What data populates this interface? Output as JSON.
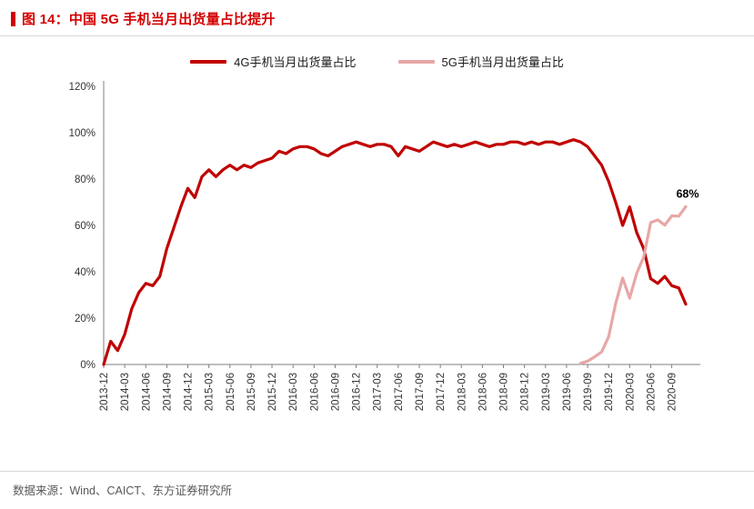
{
  "header": {
    "title": "图 14：中国 5G 手机当月出货量占比提升"
  },
  "footer": {
    "source": "数据来源：Wind、CAICT、东方证券研究所"
  },
  "colors": {
    "accent_red": "#d40000",
    "line_4g": "#c00000",
    "line_5g": "#e8a7a7",
    "axis": "#7f7f7f",
    "text": "#333333"
  },
  "chart_data": {
    "type": "line",
    "title": "中国 5G 手机当月出货量占比提升",
    "legend_position": "top",
    "grid": false,
    "ylim": [
      0,
      120
    ],
    "y_ticks": [
      0,
      20,
      40,
      60,
      80,
      100,
      120
    ],
    "y_tick_format": "percent",
    "x_tick_every": 3,
    "x": [
      "2013-12",
      "2014-01",
      "2014-02",
      "2014-03",
      "2014-04",
      "2014-05",
      "2014-06",
      "2014-07",
      "2014-08",
      "2014-09",
      "2014-10",
      "2014-11",
      "2014-12",
      "2015-01",
      "2015-02",
      "2015-03",
      "2015-04",
      "2015-05",
      "2015-06",
      "2015-07",
      "2015-08",
      "2015-09",
      "2015-10",
      "2015-11",
      "2015-12",
      "2016-01",
      "2016-02",
      "2016-03",
      "2016-04",
      "2016-05",
      "2016-06",
      "2016-07",
      "2016-08",
      "2016-09",
      "2016-10",
      "2016-11",
      "2016-12",
      "2017-01",
      "2017-02",
      "2017-03",
      "2017-04",
      "2017-05",
      "2017-06",
      "2017-07",
      "2017-08",
      "2017-09",
      "2017-10",
      "2017-11",
      "2017-12",
      "2018-01",
      "2018-02",
      "2018-03",
      "2018-04",
      "2018-05",
      "2018-06",
      "2018-07",
      "2018-08",
      "2018-09",
      "2018-10",
      "2018-11",
      "2018-12",
      "2019-01",
      "2019-02",
      "2019-03",
      "2019-04",
      "2019-05",
      "2019-06",
      "2019-07",
      "2019-08",
      "2019-09",
      "2019-10",
      "2019-11",
      "2019-12",
      "2020-01",
      "2020-02",
      "2020-03",
      "2020-04",
      "2020-05",
      "2020-06",
      "2020-07",
      "2020-08",
      "2020-09",
      "2020-10",
      "2020-11"
    ],
    "series": [
      {
        "name": "4G手机当月出货量占比",
        "id": "line-4g",
        "color_key": "line_4g",
        "values": [
          0,
          10,
          6,
          13,
          24,
          31,
          35,
          34,
          38,
          50,
          59,
          68,
          76,
          72,
          81,
          84,
          81,
          84,
          86,
          84,
          86,
          85,
          87,
          88,
          89,
          92,
          91,
          93,
          94,
          94,
          93,
          91,
          90,
          92,
          94,
          95,
          96,
          95,
          94,
          95,
          95,
          94,
          90,
          94,
          93,
          92,
          94,
          96,
          95,
          94,
          95,
          94,
          95,
          96,
          95,
          94,
          95,
          95,
          96,
          96,
          95,
          96,
          95,
          96,
          96,
          95,
          96,
          97,
          96,
          94,
          90,
          86,
          79,
          70,
          60,
          68,
          57,
          50,
          37,
          35,
          38,
          34,
          33,
          26
        ]
      },
      {
        "name": "5G手机当月出货量占比",
        "id": "line-5g",
        "color_key": "line_5g",
        "values": [
          null,
          null,
          null,
          null,
          null,
          null,
          null,
          null,
          null,
          null,
          null,
          null,
          null,
          null,
          null,
          null,
          null,
          null,
          null,
          null,
          null,
          null,
          null,
          null,
          null,
          null,
          null,
          null,
          null,
          null,
          null,
          null,
          null,
          null,
          null,
          null,
          null,
          null,
          null,
          null,
          null,
          null,
          null,
          null,
          null,
          null,
          null,
          null,
          null,
          null,
          null,
          null,
          null,
          null,
          null,
          null,
          null,
          null,
          null,
          null,
          null,
          null,
          null,
          null,
          null,
          null,
          null,
          null,
          0.5,
          1.4,
          3.3,
          5.4,
          12,
          26.3,
          37.3,
          28.6,
          39.3,
          46.3,
          61.2,
          62.4,
          60.1,
          64.1,
          64,
          68.1
        ]
      }
    ],
    "annotation": {
      "text": "68%",
      "series": "5G手机当月出货量占比",
      "at": "last"
    }
  }
}
